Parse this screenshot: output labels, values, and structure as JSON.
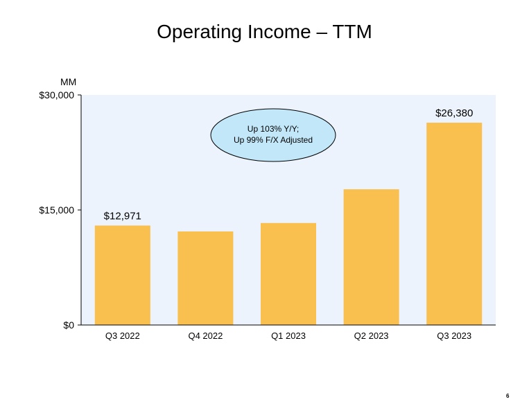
{
  "slide": {
    "title": "Operating Income – TTM",
    "page_number": "6"
  },
  "chart_data": {
    "type": "bar",
    "title": "Operating Income – TTM",
    "ylabel": "MM",
    "xlabel": "",
    "categories": [
      "Q3 2022",
      "Q4 2022",
      "Q1 2023",
      "Q2 2023",
      "Q3 2023"
    ],
    "values": [
      12971,
      12200,
      13300,
      17700,
      26380
    ],
    "data_labels": [
      "$12,971",
      "",
      "",
      "",
      "$26,380"
    ],
    "ylim": [
      0,
      30000
    ],
    "yticks": [
      0,
      15000,
      30000
    ],
    "ytick_labels": [
      "$0",
      "$15,000",
      "$30,000"
    ],
    "grid": false,
    "legend": "none",
    "callout": {
      "line1": "Up 103% Y/Y;",
      "line2": "Up 99% F/X Adjusted"
    },
    "colors": {
      "bar": "#F9BF4F",
      "plot_background": "#EDF3FC",
      "callout_fill": "#C2E7F8",
      "axis": "#000000"
    }
  }
}
